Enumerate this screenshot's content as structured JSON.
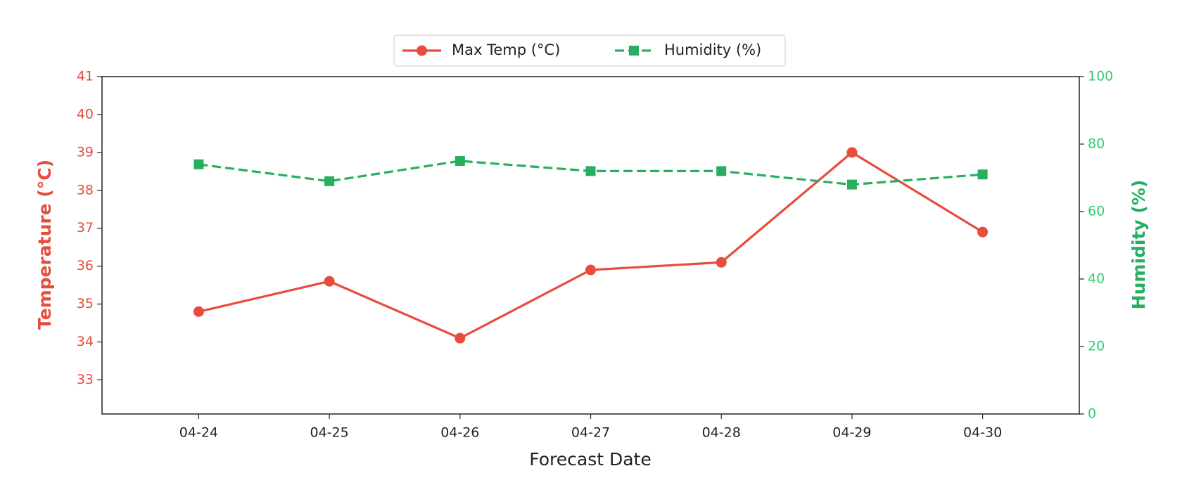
{
  "chart_data": {
    "type": "line",
    "x_label": "Forecast Date",
    "y_label": "Temperature (°C)",
    "y2_label": "Humidity (%)",
    "categories": [
      "04-24",
      "04-25",
      "04-26",
      "04-27",
      "04-28",
      "04-29",
      "04-30"
    ],
    "series": [
      {
        "name": "Max Temp (°C)",
        "color": "#e74c3c",
        "marker": "circle",
        "dash": false,
        "values": [
          34.8,
          35.6,
          34.1,
          35.9,
          36.1,
          39.0,
          36.9
        ]
      },
      {
        "name": "Humidity (%)",
        "color": "#27ae60",
        "marker": "square",
        "dash": true,
        "axis": "y2",
        "values": [
          74,
          69,
          75,
          72,
          72,
          68,
          71
        ]
      }
    ],
    "ylim": [
      32.1,
      41
    ],
    "yticks": [
      33,
      34,
      35,
      36,
      37,
      38,
      39,
      40,
      41
    ],
    "y2lim": [
      0,
      100
    ],
    "y2ticks": [
      0,
      20,
      40,
      60,
      80,
      100
    ],
    "grid": false,
    "legend": "top"
  }
}
